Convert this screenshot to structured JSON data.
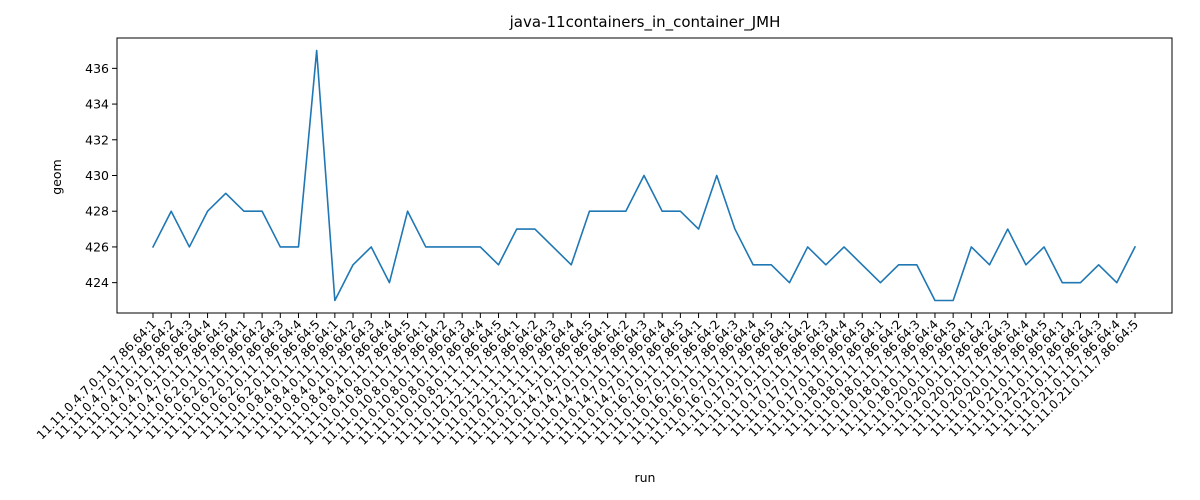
{
  "chart_data": {
    "type": "line",
    "title": "java-11containers_in_container_JMH",
    "xlabel": "run",
    "ylabel": "geom",
    "ylim": [
      422.3,
      437.7
    ],
    "yticks": [
      424,
      426,
      428,
      430,
      432,
      434,
      436
    ],
    "grid": false,
    "line_color": "#1f77b4",
    "categories": [
      "11.11.0.4.7.0.11.7.86.64:1",
      "11.11.0.4.7.0.11.7.86.64:2",
      "11.11.0.4.7.0.11.7.86.64:3",
      "11.11.0.4.7.0.11.7.86.64:4",
      "11.11.0.4.7.0.11.7.86.64:5",
      "11.11.0.6.2.0.11.7.86.64:1",
      "11.11.0.6.2.0.11.7.86.64:2",
      "11.11.0.6.2.0.11.7.86.64:3",
      "11.11.0.6.2.0.11.7.86.64:4",
      "11.11.0.6.2.0.11.7.86.64:5",
      "11.11.0.8.4.0.11.7.86.64:1",
      "11.11.0.8.4.0.11.7.86.64:2",
      "11.11.0.8.4.0.11.7.86.64:3",
      "11.11.0.8.4.0.11.7.86.64:4",
      "11.11.0.8.4.0.11.7.86.64:5",
      "11.11.0.10.8.0.11.7.86.64:1",
      "11.11.0.10.8.0.11.7.86.64:2",
      "11.11.0.10.8.0.11.7.86.64:3",
      "11.11.0.10.8.0.11.7.86.64:4",
      "11.11.0.10.8.0.11.7.86.64:5",
      "11.11.0.12.1.1.11.7.86.64:1",
      "11.11.0.12.1.1.11.7.86.64:2",
      "11.11.0.12.1.1.11.7.86.64:3",
      "11.11.0.12.1.1.11.7.86.64:4",
      "11.11.0.12.1.1.11.7.86.64:5",
      "11.11.0.14.7.0.11.7.86.64:1",
      "11.11.0.14.7.0.11.7.86.64:2",
      "11.11.0.14.7.0.11.7.86.64:3",
      "11.11.0.14.7.0.11.7.86.64:4",
      "11.11.0.14.7.0.11.7.86.64:5",
      "11.11.0.16.7.0.11.7.86.64:1",
      "11.11.0.16.7.0.11.7.86.64:2",
      "11.11.0.16.7.0.11.7.86.64:3",
      "11.11.0.16.7.0.11.7.86.64:4",
      "11.11.0.16.7.0.11.7.86.64:5",
      "11.11.0.17.0.11.7.86.64:1",
      "11.11.0.17.0.11.7.86.64:2",
      "11.11.0.17.0.11.7.86.64:3",
      "11.11.0.17.0.11.7.86.64:4",
      "11.11.0.17.0.11.7.86.64:5",
      "11.11.0.18.0.11.7.86.64:1",
      "11.11.0.18.0.11.7.86.64:2",
      "11.11.0.18.0.11.7.86.64:3",
      "11.11.0.18.0.11.7.86.64:4",
      "11.11.0.18.0.11.7.86.64:5",
      "11.11.0.20.0.11.7.86.64:1",
      "11.11.0.20.0.11.7.86.64:2",
      "11.11.0.20.0.11.7.86.64:3",
      "11.11.0.20.0.11.7.86.64:4",
      "11.11.0.20.0.11.7.86.64:5",
      "11.11.0.21.0.11.7.86.64:1",
      "11.11.0.21.0.11.7.86.64:2",
      "11.11.0.21.0.11.7.86.64:3",
      "11.11.0.21.0.11.7.86.64:4",
      "11.11.0.21.0.11.7.86.64:5"
    ],
    "values": [
      426,
      428,
      426,
      428,
      429,
      428,
      428,
      426,
      426,
      437,
      423,
      425,
      426,
      424,
      428,
      426,
      426,
      426,
      426,
      425,
      427,
      427,
      426,
      425,
      428,
      428,
      428,
      430,
      428,
      428,
      427,
      430,
      427,
      425,
      425,
      424,
      426,
      425,
      426,
      425,
      424,
      425,
      425,
      423,
      423,
      426,
      425,
      427,
      425,
      426,
      424,
      424,
      425,
      424,
      426
    ]
  }
}
